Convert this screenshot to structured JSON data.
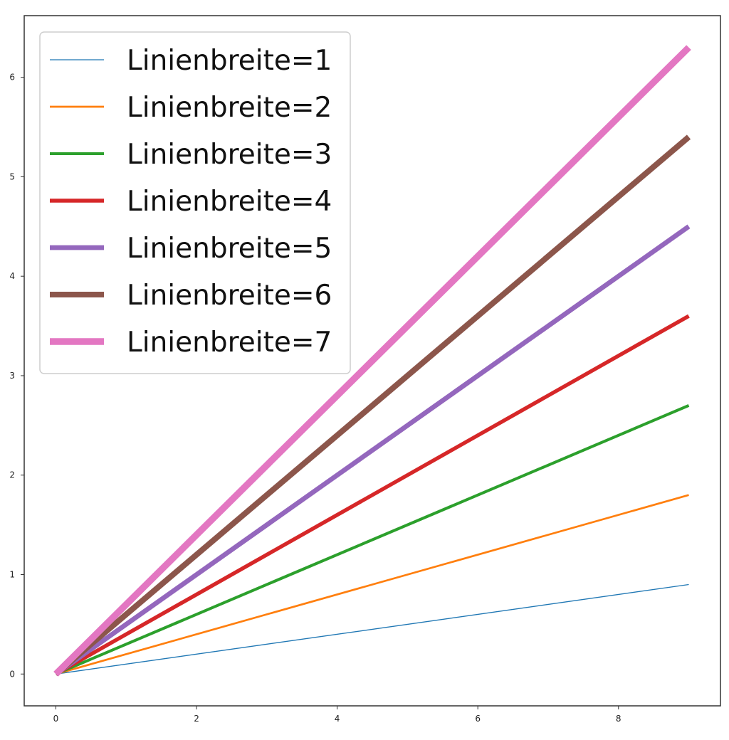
{
  "chart_data": {
    "type": "line",
    "title": "",
    "xlabel": "",
    "ylabel": "",
    "xlim": [
      -0.45,
      9.45
    ],
    "ylim": [
      -0.32,
      6.62
    ],
    "x_ticks": [
      0,
      2,
      4,
      6,
      8
    ],
    "y_ticks": [
      0,
      1,
      2,
      3,
      4,
      5,
      6
    ],
    "x_tick_labels": [
      "0",
      "2",
      "4",
      "6",
      "8"
    ],
    "y_tick_labels": [
      "0",
      "1",
      "2",
      "3",
      "4",
      "5",
      "6"
    ],
    "grid": false,
    "legend_position": "upper-left",
    "x": [
      0,
      9
    ],
    "series": [
      {
        "name": "Linienbreite=1",
        "linewidth": 1,
        "color": "#1f77b4",
        "values": [
          0,
          0.9
        ]
      },
      {
        "name": "Linienbreite=2",
        "linewidth": 2,
        "color": "#ff7f0e",
        "values": [
          0,
          1.8
        ]
      },
      {
        "name": "Linienbreite=3",
        "linewidth": 3,
        "color": "#2ca02c",
        "values": [
          0,
          2.7
        ]
      },
      {
        "name": "Linienbreite=4",
        "linewidth": 4,
        "color": "#d62728",
        "values": [
          0,
          3.6
        ]
      },
      {
        "name": "Linienbreite=5",
        "linewidth": 5,
        "color": "#9467bd",
        "values": [
          0,
          4.5
        ]
      },
      {
        "name": "Linienbreite=6",
        "linewidth": 6,
        "color": "#8c564b",
        "values": [
          0,
          5.4
        ]
      },
      {
        "name": "Linienbreite=7",
        "linewidth": 7,
        "color": "#e377c2",
        "values": [
          0,
          6.3
        ]
      }
    ]
  }
}
